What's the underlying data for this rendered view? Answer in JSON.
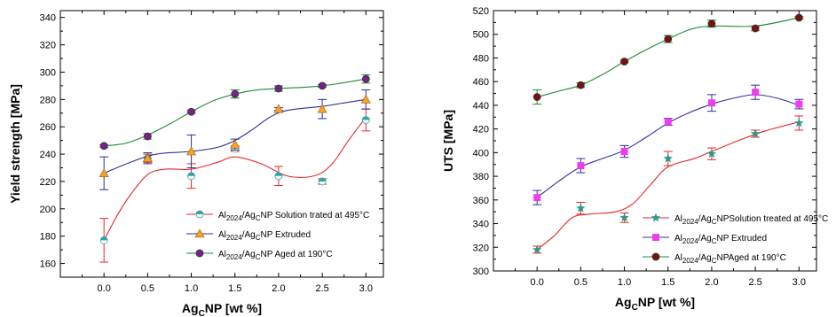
{
  "chart_data": [
    {
      "type": "line",
      "ylabel": "Yield strength [MPa]",
      "xlabel": "Ag",
      "xlabel_sub": "C",
      "xlabel_rest": "NP [wt %]",
      "x": [
        0.0,
        0.5,
        1.0,
        1.5,
        2.0,
        2.5,
        3.0
      ],
      "x_tick_labels": [
        "0.0",
        "0.5",
        "1.0",
        "1.5",
        "2.0",
        "2.5",
        "3.0"
      ],
      "xlim": [
        -0.5,
        3.2
      ],
      "ylim": [
        150,
        345
      ],
      "y_ticks": [
        160,
        180,
        200,
        220,
        240,
        260,
        280,
        300,
        320,
        340
      ],
      "y_tick_labels": [
        "160",
        "180",
        "200",
        "220",
        "240",
        "260",
        "280",
        "300",
        "320",
        "340"
      ],
      "grid": false,
      "legend_position": "bottom-right",
      "series": [
        {
          "name": "Al2024/AgCNP Solution trated at 495°C",
          "name_parts": {
            "a": "Al",
            "a_sub": "2024",
            "b": "/Ag",
            "b_sub": "C",
            "c": "NP Solution trated at 495°C"
          },
          "color": "#e8262a",
          "marker": "circle-half",
          "marker_color": "#31a5a5",
          "values": [
            177,
            237,
            224,
            244,
            224,
            220,
            265
          ],
          "errors": [
            16,
            3,
            9,
            2,
            7,
            2,
            8
          ],
          "smooth": [
            [
              0.0,
              177
            ],
            [
              0.15,
              195
            ],
            [
              0.3,
              210
            ],
            [
              0.5,
              225
            ],
            [
              0.7,
              229
            ],
            [
              1.0,
              229
            ],
            [
              1.3,
              234
            ],
            [
              1.5,
              238
            ],
            [
              1.8,
              233
            ],
            [
              2.1,
              224
            ],
            [
              2.4,
              224
            ],
            [
              2.6,
              232
            ],
            [
              2.8,
              250
            ],
            [
              3.0,
              267
            ]
          ]
        },
        {
          "name": "Al2024/AgCNP Extruded",
          "name_parts": {
            "a": "Al",
            "a_sub": "2024",
            "b": "/Ag",
            "b_sub": "C",
            "c": "NP Extruded"
          },
          "color": "#2e2e9c",
          "marker": "triangle",
          "marker_color": "#f5a12a",
          "values": [
            226,
            237,
            242,
            247,
            273,
            273,
            280
          ],
          "errors": [
            12,
            4,
            12,
            4,
            1,
            7,
            7
          ],
          "smooth": [
            [
              0.0,
              226
            ],
            [
              0.3,
              234
            ],
            [
              0.6,
              240
            ],
            [
              1.0,
              242
            ],
            [
              1.3,
              245
            ],
            [
              1.5,
              250
            ],
            [
              1.7,
              258
            ],
            [
              1.9,
              267
            ],
            [
              2.1,
              272
            ],
            [
              2.5,
              275
            ],
            [
              2.8,
              278
            ],
            [
              3.0,
              280
            ]
          ]
        },
        {
          "name": "Al2024/AgCNP Aged at 190°C",
          "name_parts": {
            "a": "Al",
            "a_sub": "2024",
            "b": "/Ag",
            "b_sub": "C",
            "c": "NP Aged at 190°C"
          },
          "color": "#1f8a2e",
          "marker": "circle",
          "marker_color": "#7a1f8c",
          "values": [
            246,
            253,
            271,
            284,
            288,
            290,
            295
          ],
          "errors": [
            1,
            2,
            1,
            3,
            2,
            1,
            3
          ],
          "smooth": [
            [
              0.0,
              246
            ],
            [
              0.25,
              248
            ],
            [
              0.5,
              254
            ],
            [
              0.75,
              262
            ],
            [
              1.0,
              271
            ],
            [
              1.25,
              279
            ],
            [
              1.5,
              284
            ],
            [
              1.75,
              287
            ],
            [
              2.0,
              288
            ],
            [
              2.5,
              290
            ],
            [
              3.0,
              295
            ]
          ]
        }
      ]
    },
    {
      "type": "line",
      "ylabel": "UTS [MPa]",
      "xlabel": "Ag",
      "xlabel_sub": "C",
      "xlabel_rest": "NP [wt %]",
      "x": [
        0.0,
        0.5,
        1.0,
        1.5,
        2.0,
        2.5,
        3.0
      ],
      "x_tick_labels": [
        "0.0",
        "0.5",
        "1.0",
        "1.5",
        "2.0",
        "2.5",
        "3.0"
      ],
      "xlim": [
        -0.5,
        3.2
      ],
      "ylim": [
        300,
        520
      ],
      "y_ticks": [
        300,
        320,
        340,
        360,
        380,
        400,
        420,
        440,
        460,
        480,
        500,
        520
      ],
      "y_tick_labels": [
        "300",
        "320",
        "340",
        "360",
        "380",
        "400",
        "420",
        "440",
        "460",
        "480",
        "500",
        "520"
      ],
      "grid": false,
      "legend_position": "bottom-right",
      "series": [
        {
          "name": "Al2024/AgCNPSolution treated at 495°C",
          "name_parts": {
            "a": "Al",
            "a_sub": "2024",
            "b": "/Ag",
            "b_sub": "C",
            "c": "NPSolution treated at 495°C"
          },
          "color": "#e8262a",
          "marker": "star",
          "marker_color": "#2a9a8a",
          "values": [
            318,
            353,
            345,
            395,
            399,
            416,
            425
          ],
          "errors": [
            3,
            5,
            4,
            6,
            5,
            3,
            6
          ],
          "smooth": [
            [
              0.0,
              318
            ],
            [
              0.2,
              330
            ],
            [
              0.4,
              345
            ],
            [
              0.6,
              348
            ],
            [
              0.9,
              350
            ],
            [
              1.1,
              357
            ],
            [
              1.3,
              373
            ],
            [
              1.5,
              388
            ],
            [
              1.8,
              395
            ],
            [
              2.0,
              401
            ],
            [
              2.3,
              410
            ],
            [
              2.6,
              418
            ],
            [
              3.0,
              426
            ]
          ]
        },
        {
          "name": "Al2024/AgCNP Extruded",
          "name_parts": {
            "a": "Al",
            "a_sub": "2024",
            "b": "/Ag",
            "b_sub": "C",
            "c": "NP Extruded"
          },
          "color": "#2e2ea0",
          "marker": "square",
          "marker_color": "#f03cf0",
          "values": [
            362,
            389,
            401,
            426,
            442,
            451,
            441
          ],
          "errors": [
            6,
            6,
            5,
            3,
            7,
            6,
            4
          ],
          "smooth": [
            [
              0.0,
              362
            ],
            [
              0.25,
              376
            ],
            [
              0.5,
              388
            ],
            [
              0.75,
              395
            ],
            [
              1.0,
              402
            ],
            [
              1.25,
              413
            ],
            [
              1.5,
              425
            ],
            [
              1.75,
              434
            ],
            [
              2.0,
              441
            ],
            [
              2.25,
              446
            ],
            [
              2.5,
              449
            ],
            [
              2.75,
              446
            ],
            [
              3.0,
              440
            ]
          ]
        },
        {
          "name": "Al2024/AgCNPAged at 190°C",
          "name_parts": {
            "a": "Al",
            "a_sub": "2024",
            "b": "/Ag",
            "b_sub": "C",
            "c": "NPAged at 190°C"
          },
          "color": "#1f8a2e",
          "marker": "circle",
          "marker_color": "#7a1010",
          "values": [
            447,
            457,
            477,
            496,
            509,
            505,
            514
          ],
          "errors": [
            6,
            2,
            1,
            3,
            3,
            2,
            1
          ],
          "smooth": [
            [
              0.0,
              447
            ],
            [
              0.25,
              452
            ],
            [
              0.5,
              457
            ],
            [
              0.75,
              466
            ],
            [
              1.0,
              477
            ],
            [
              1.25,
              487
            ],
            [
              1.5,
              496
            ],
            [
              1.75,
              504
            ],
            [
              2.0,
              507
            ],
            [
              2.5,
              507
            ],
            [
              3.0,
              514
            ]
          ]
        }
      ]
    }
  ]
}
